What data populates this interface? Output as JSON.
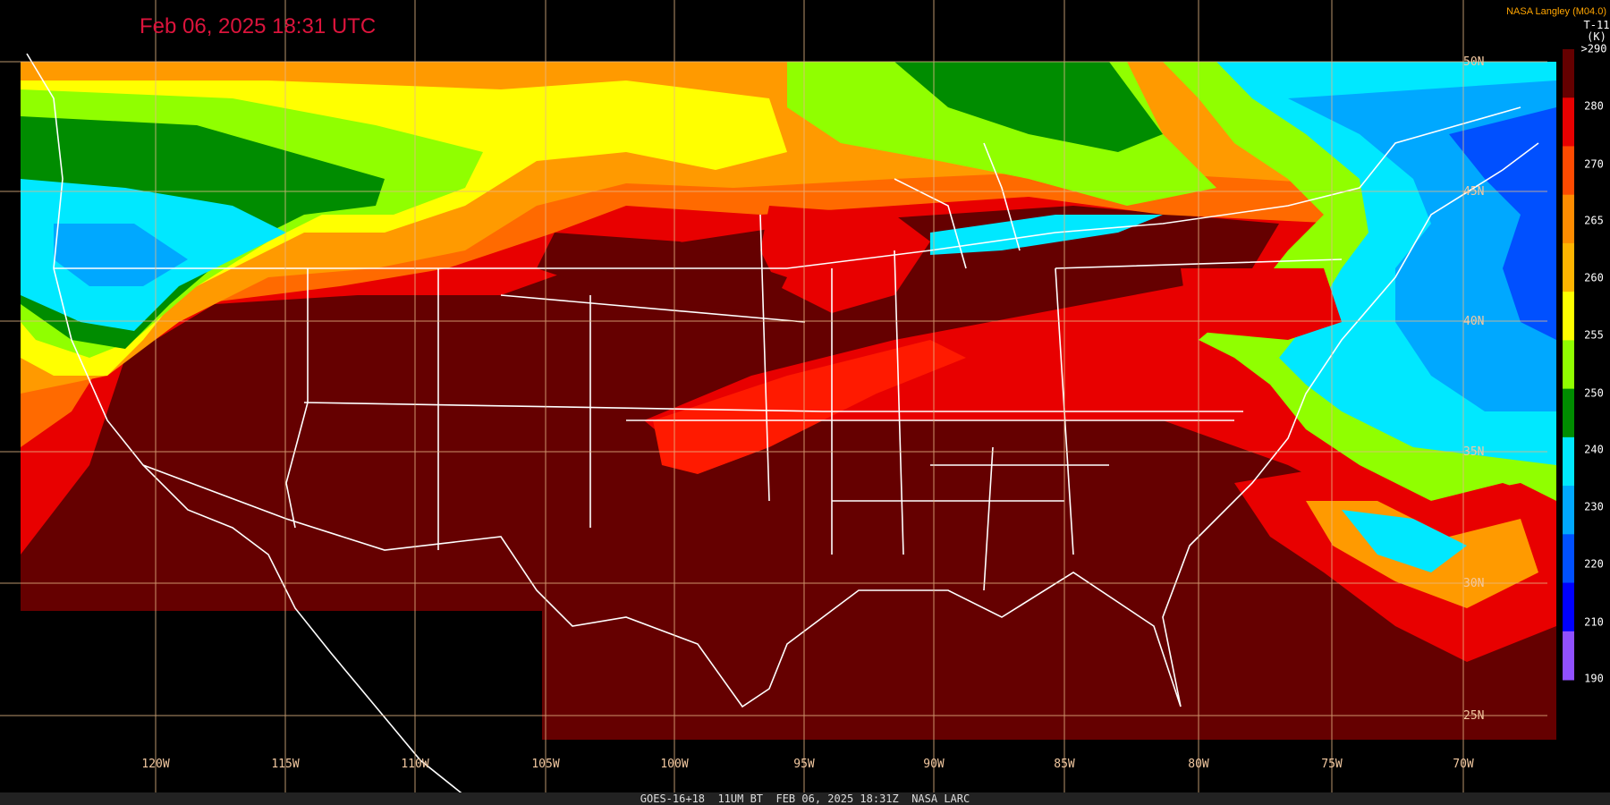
{
  "header": {
    "title": "Feb 06, 2025 18:31 UTC",
    "source": "NASA Langley (M04.0)",
    "channel": "T-11",
    "unit": "(K)"
  },
  "colorbar": {
    "labels": [
      ">290",
      "280",
      "270",
      "265",
      "260",
      "255",
      "250",
      "240",
      "230",
      "220",
      "210",
      "190"
    ]
  },
  "longitudes": [
    "120W",
    "115W",
    "110W",
    "105W",
    "100W",
    "95W",
    "90W",
    "85W",
    "80W",
    "75W",
    "70W"
  ],
  "latitudes": [
    "50N",
    "45N",
    "40N",
    "35N",
    "30N",
    "25N"
  ],
  "footer": "GOES-16+18  11UM BT  FEB 06, 2025 18:31Z  NASA LARC"
}
